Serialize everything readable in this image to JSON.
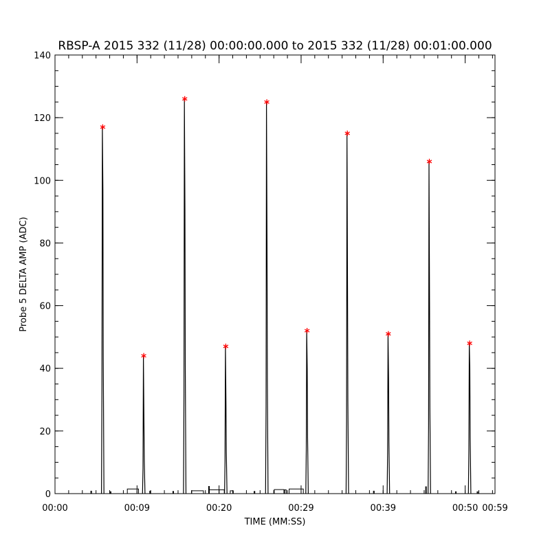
{
  "chart_data": {
    "type": "line",
    "title": "RBSP-A 2015 332 (11/28) 00:00:00.000 to 2015 332 (11/28) 00:01:00.000",
    "xlabel": "TIME (MM:SS)",
    "ylabel": "Probe 5 DELTA AMP (ADC)",
    "xlim": [
      0,
      59
    ],
    "ylim": [
      0,
      140
    ],
    "x_ticks": [
      0,
      11,
      22,
      33,
      44,
      55,
      60
    ],
    "x_tick_labels": [
      "00:00",
      "00:09",
      "00:20",
      "00:29",
      "00:39",
      "00:50",
      "00:59"
    ],
    "x_minor_step": 1.8333,
    "y_ticks": [
      0,
      20,
      40,
      60,
      80,
      100,
      120,
      140
    ],
    "y_tick_labels": [
      "0",
      "20",
      "40",
      "60",
      "80",
      "100",
      "120",
      "140"
    ],
    "y_minor_step": 5,
    "series": [
      {
        "color": "#000000",
        "peaks": [
          {
            "x": 6.4,
            "y": 117,
            "mid": 97
          },
          {
            "x": 11.9,
            "y": 44,
            "mid": 23
          },
          {
            "x": 17.4,
            "y": 126,
            "mid": 91
          },
          {
            "x": 22.9,
            "y": 47,
            "mid": 29
          },
          {
            "x": 28.4,
            "y": 125,
            "mid": 80
          },
          {
            "x": 33.8,
            "y": 52,
            "mid": 40
          },
          {
            "x": 39.2,
            "y": 115,
            "mid": 66
          },
          {
            "x": 44.7,
            "y": 51,
            "mid": 37
          },
          {
            "x": 50.2,
            "y": 106,
            "mid": 61
          },
          {
            "x": 55.6,
            "y": 48,
            "mid": 40
          }
        ],
        "baseline_blips": [
          {
            "x0": 4.8,
            "x1": 4.9,
            "y": 0.8
          },
          {
            "x0": 7.4,
            "x1": 7.5,
            "y": 0.6
          },
          {
            "x0": 9.7,
            "x1": 11.2,
            "y": 1.5
          },
          {
            "x0": 12.7,
            "x1": 12.8,
            "y": 0.8
          },
          {
            "x0": 15.8,
            "x1": 15.9,
            "y": 0.7
          },
          {
            "x0": 18.3,
            "x1": 19.9,
            "y": 0.9
          },
          {
            "x0": 20.6,
            "x1": 20.7,
            "y": 2.3
          },
          {
            "x0": 20.7,
            "x1": 22.7,
            "y": 1.2
          },
          {
            "x0": 23.5,
            "x1": 23.9,
            "y": 0.9
          },
          {
            "x0": 26.7,
            "x1": 26.8,
            "y": 0.7
          },
          {
            "x0": 29.4,
            "x1": 30.7,
            "y": 1.3
          },
          {
            "x0": 30.8,
            "x1": 31.0,
            "y": 1.2
          },
          {
            "x0": 31.4,
            "x1": 33.3,
            "y": 1.5
          },
          {
            "x0": 42.7,
            "x1": 42.8,
            "y": 0.8
          },
          {
            "x0": 49.7,
            "x1": 49.8,
            "y": 2.2
          },
          {
            "x0": 53.7,
            "x1": 53.8,
            "y": 0.6
          },
          {
            "x0": 56.6,
            "x1": 56.7,
            "y": 0.6
          }
        ]
      }
    ],
    "markers": {
      "symbol": "*",
      "color": "#ff0000",
      "points": [
        {
          "x": 6.4,
          "y": 117
        },
        {
          "x": 11.9,
          "y": 44
        },
        {
          "x": 17.4,
          "y": 126
        },
        {
          "x": 22.9,
          "y": 47
        },
        {
          "x": 28.4,
          "y": 125
        },
        {
          "x": 33.8,
          "y": 52
        },
        {
          "x": 39.2,
          "y": 115
        },
        {
          "x": 44.7,
          "y": 51
        },
        {
          "x": 50.2,
          "y": 106
        },
        {
          "x": 55.6,
          "y": 48
        }
      ]
    },
    "grid": false
  }
}
